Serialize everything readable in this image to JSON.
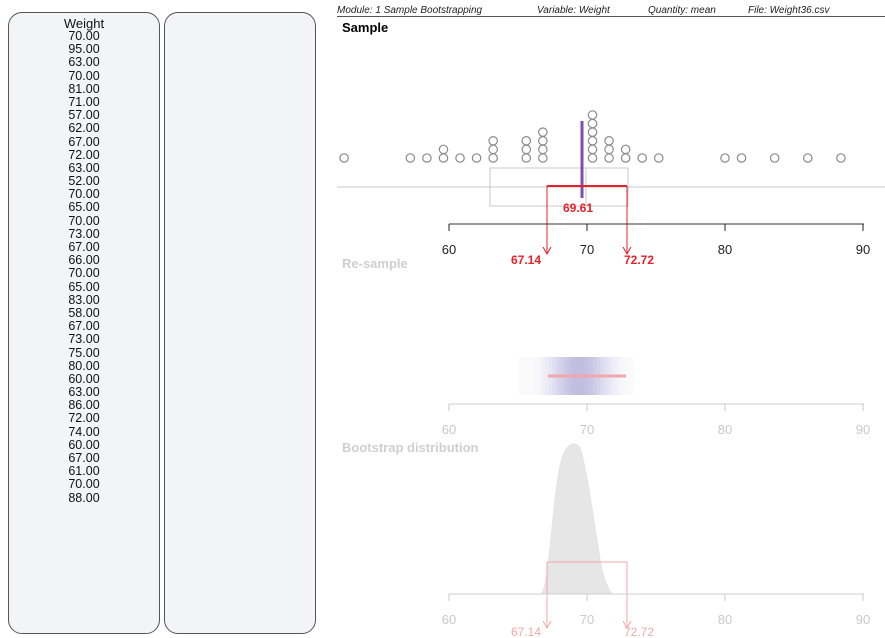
{
  "left_column": {
    "header": "Weight",
    "values": [
      "70.00",
      "95.00",
      "63.00",
      "70.00",
      "81.00",
      "71.00",
      "57.00",
      "62.00",
      "67.00",
      "72.00",
      "63.00",
      "52.00",
      "70.00",
      "65.00",
      "70.00",
      "73.00",
      "67.00",
      "66.00",
      "70.00",
      "65.00",
      "83.00",
      "58.00",
      "67.00",
      "73.00",
      "75.00",
      "80.00",
      "60.00",
      "63.00",
      "86.00",
      "72.00",
      "74.00",
      "60.00",
      "67.00",
      "61.00",
      "70.00",
      "88.00"
    ]
  },
  "right_column": {
    "values": []
  },
  "header_info": {
    "module": "Module: 1 Sample Bootstrapping",
    "variable": "Variable: Weight",
    "quantity": "Quantity: mean",
    "file": "File: Weight36.csv"
  },
  "sample_section": {
    "title": "Sample",
    "mean_label": "69.61",
    "ci_lower_label": "67.14",
    "ci_upper_label": "72.72",
    "axis_ticks": [
      "60",
      "70",
      "80",
      "90"
    ]
  },
  "resample_section": {
    "title": "Re-sample",
    "axis_ticks": [
      "60",
      "70",
      "80",
      "90"
    ]
  },
  "bootstrap_section": {
    "title": "Bootstrap distribution",
    "ci_lower_label": "67.14",
    "ci_upper_label": "72.72",
    "axis_ticks": [
      "60",
      "70",
      "80",
      "90"
    ]
  },
  "colors": {
    "ci_red": "#e8202a",
    "mean_purple": "#7d4fb0",
    "ghost": "#d4d4d4",
    "ghost_pink": "#f2a8aa",
    "resample_blue": "#8c86c8"
  }
}
